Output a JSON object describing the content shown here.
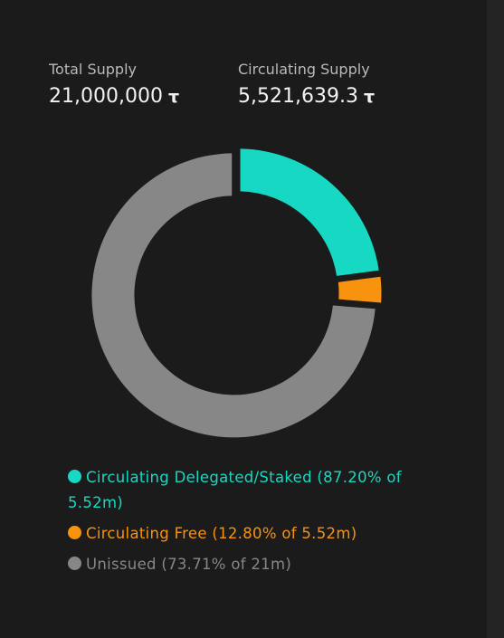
{
  "stats": {
    "total_label": "Total Supply",
    "total_value": "21,000,000",
    "total_unit": "τ",
    "circulating_label": "Circulating Supply",
    "circulating_value": "5,521,639.3",
    "circulating_unit": "τ"
  },
  "chart_data": {
    "type": "pie",
    "variant": "donut",
    "title": "",
    "total": 21000000,
    "circulating": 5521639.3,
    "slices": [
      {
        "name": "Circulating Delegated/Staked",
        "value": 4814869.5,
        "color": "#17d9c3"
      },
      {
        "name": "Circulating Free",
        "value": 706769.8,
        "color": "#f7930f"
      },
      {
        "name": "Unissued",
        "value": 15478360.7,
        "color": "#878787"
      }
    ]
  },
  "legend": [
    {
      "label": "Circulating Delegated/Staked (87.20% of 5.52m)",
      "color": "#17d9c3",
      "icon": "circle-dot"
    },
    {
      "label": "Circulating Free (12.80% of 5.52m)",
      "color": "#f7930f",
      "icon": "circle-dot"
    },
    {
      "label": "Unissued (73.71% of 21m)",
      "color": "#878787",
      "icon": "circle-dot"
    }
  ]
}
